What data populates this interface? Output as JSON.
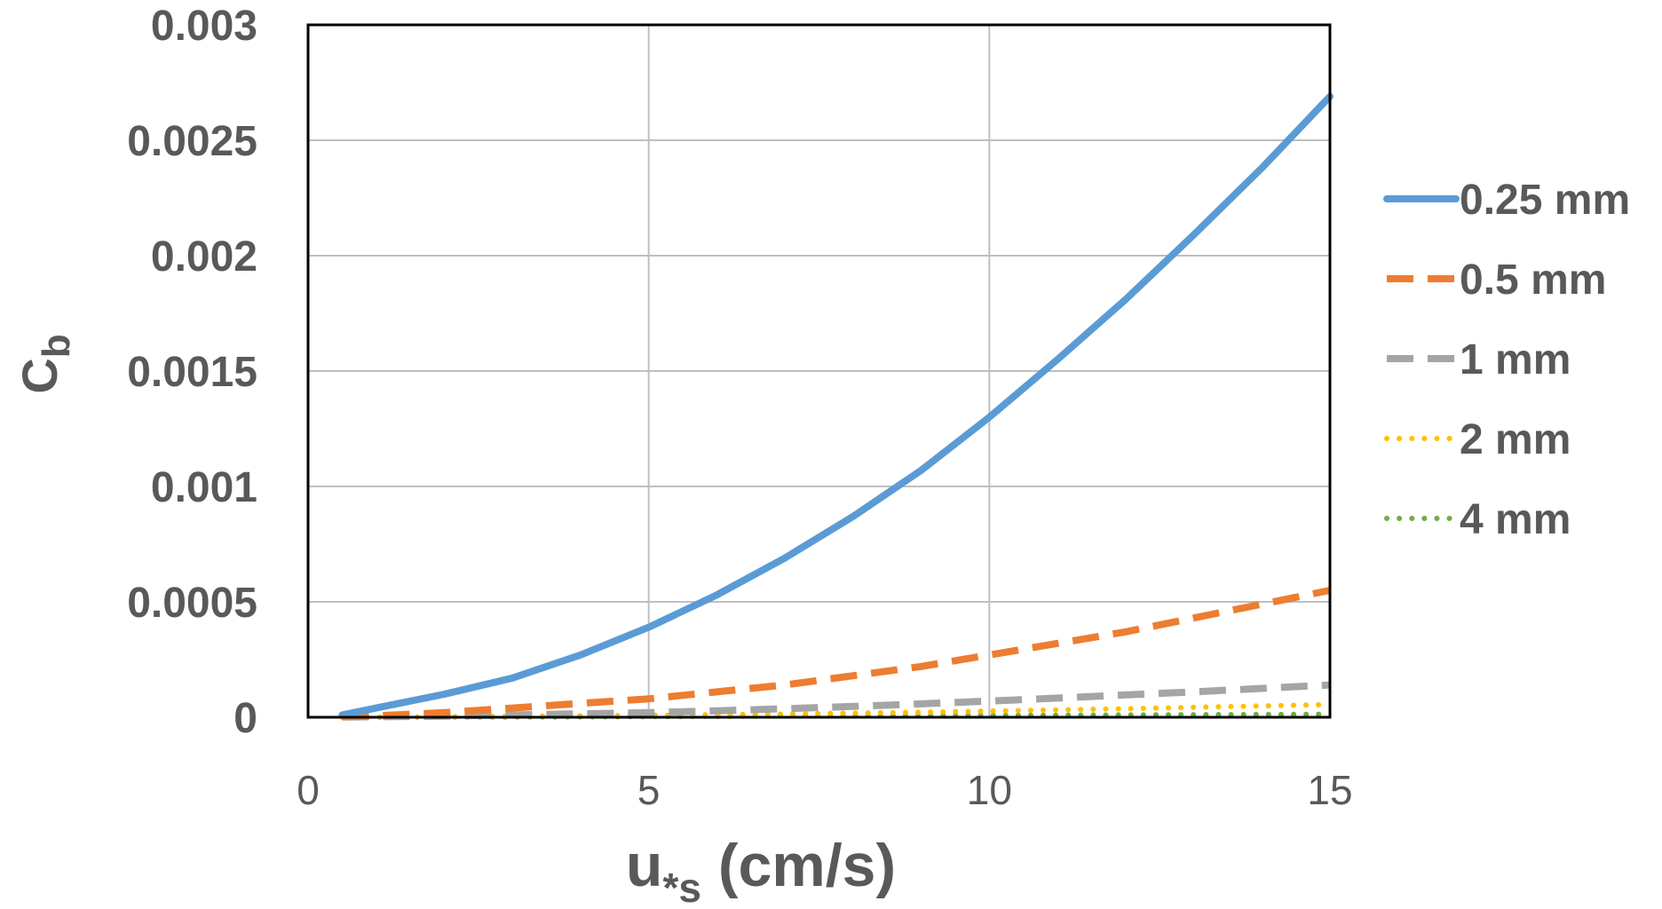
{
  "chart_data": {
    "type": "line",
    "title": "",
    "xlabel": {
      "main": "u",
      "sub": "*s",
      "unit": "(cm/s)"
    },
    "ylabel": {
      "main": "C",
      "sub": "b"
    },
    "xlim": [
      0,
      15
    ],
    "ylim": [
      0,
      0.003
    ],
    "x_ticks": [
      {
        "value": 0,
        "label": "0"
      },
      {
        "value": 5,
        "label": "5"
      },
      {
        "value": 10,
        "label": "10"
      },
      {
        "value": 15,
        "label": "15"
      }
    ],
    "y_ticks": [
      {
        "value": 0,
        "label": "0"
      },
      {
        "value": 0.0005,
        "label": "0.0005"
      },
      {
        "value": 0.001,
        "label": "0.001"
      },
      {
        "value": 0.0015,
        "label": "0.0015"
      },
      {
        "value": 0.002,
        "label": "0.002"
      },
      {
        "value": 0.0025,
        "label": "0.0025"
      },
      {
        "value": 0.003,
        "label": "0.003"
      }
    ],
    "grid": true,
    "legend_position": "right",
    "series": [
      {
        "name": "0.25 mm",
        "color": "#5B9BD5",
        "style": "solid",
        "x": [
          0.5,
          1,
          2,
          3,
          4,
          5,
          6,
          7,
          8,
          9,
          10,
          11,
          12,
          13,
          14,
          15
        ],
        "y": [
          1e-05,
          4e-05,
          0.0001,
          0.00017,
          0.00027,
          0.00039,
          0.00053,
          0.00069,
          0.00087,
          0.00107,
          0.0013,
          0.00155,
          0.00181,
          0.00209,
          0.00238,
          0.00269
        ]
      },
      {
        "name": "0.5 mm",
        "color": "#ED7D31",
        "style": "dash",
        "x": [
          0.5,
          1,
          2,
          3,
          4,
          5,
          6,
          7,
          8,
          9,
          10,
          11,
          12,
          13,
          14,
          15
        ],
        "y": [
          2e-06,
          6e-06,
          2e-05,
          4e-05,
          6e-05,
          8e-05,
          0.00011,
          0.00014,
          0.00018,
          0.00022,
          0.00027,
          0.00032,
          0.00037,
          0.00043,
          0.00049,
          0.00055
        ]
      },
      {
        "name": "1 mm",
        "color": "#A5A5A5",
        "style": "dash",
        "x": [
          0.5,
          1,
          2,
          3,
          4,
          5,
          6,
          7,
          8,
          9,
          10,
          11,
          12,
          13,
          14,
          15
        ],
        "y": [
          1e-06,
          2e-06,
          5e-06,
          1e-05,
          1.5e-05,
          2e-05,
          2.8e-05,
          3.7e-05,
          4.7e-05,
          5.8e-05,
          7e-05,
          8.3e-05,
          9.7e-05,
          0.00011,
          0.000125,
          0.00014
        ]
      },
      {
        "name": "2 mm",
        "color": "#FFC000",
        "style": "dot",
        "x": [
          0.5,
          1,
          2,
          3,
          4,
          5,
          6,
          7,
          8,
          9,
          10,
          11,
          12,
          13,
          14,
          15
        ],
        "y": [
          0,
          1e-06,
          2e-06,
          4e-06,
          6e-06,
          8e-06,
          1.1e-05,
          1.4e-05,
          1.8e-05,
          2.2e-05,
          2.7e-05,
          3.2e-05,
          3.7e-05,
          4.3e-05,
          4.9e-05,
          5.5e-05
        ]
      },
      {
        "name": "4 mm",
        "color": "#70AD47",
        "style": "dot",
        "x": [
          0.5,
          1,
          2,
          3,
          4,
          5,
          6,
          7,
          8,
          9,
          10,
          11,
          12,
          13,
          14,
          15
        ],
        "y": [
          0,
          0,
          1e-06,
          1e-06,
          2e-06,
          3e-06,
          4e-06,
          5e-06,
          6e-06,
          7e-06,
          8e-06,
          9e-06,
          1e-05,
          1.1e-05,
          1.2e-05,
          1.3e-05
        ]
      }
    ]
  }
}
